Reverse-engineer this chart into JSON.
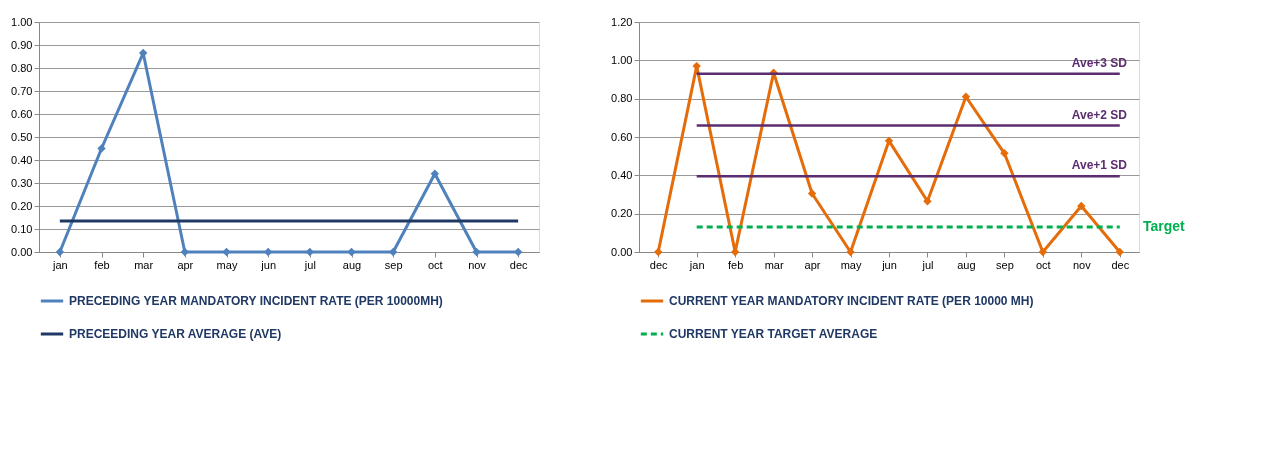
{
  "chart_data": [
    {
      "type": "line",
      "categories": [
        "jan",
        "feb",
        "mar",
        "apr",
        "may",
        "jun",
        "jul",
        "aug",
        "sep",
        "oct",
        "nov",
        "dec"
      ],
      "series": [
        {
          "name": "PRECEDING YEAR MANDATORY INCIDENT RATE (PER 10000MH)",
          "color": "#4f81bd",
          "marker": "diamond",
          "values": [
            0,
            0.45,
            0.865,
            0,
            0,
            0,
            0,
            0,
            0,
            0.34,
            0,
            0
          ]
        },
        {
          "name": "PRECEEDING YEAR AVERAGE (AVE)",
          "color": "#1f3864",
          "marker": "none",
          "values": [
            0.135,
            0.135,
            0.135,
            0.135,
            0.135,
            0.135,
            0.135,
            0.135,
            0.135,
            0.135,
            0.135,
            0.135
          ]
        }
      ],
      "ylim": [
        0,
        1
      ],
      "yticks": [
        {
          "value": 0,
          "label": "0.00"
        },
        {
          "value": 0.1,
          "label": "0.10"
        },
        {
          "value": 0.2,
          "label": "0.20"
        },
        {
          "value": 0.3,
          "label": "0.30"
        },
        {
          "value": 0.4,
          "label": "0.40"
        },
        {
          "value": 0.5,
          "label": "0.50"
        },
        {
          "value": 0.6,
          "label": "0.60"
        },
        {
          "value": 0.7,
          "label": "0.70"
        },
        {
          "value": 0.8,
          "label": "0.80"
        },
        {
          "value": 0.9,
          "label": "0.90"
        },
        {
          "value": 1,
          "label": "1.00"
        }
      ],
      "grid": "y",
      "legend": "bottom"
    },
    {
      "type": "line",
      "categories": [
        "dec",
        "jan",
        "feb",
        "mar",
        "apr",
        "may",
        "jun",
        "jul",
        "aug",
        "sep",
        "oct",
        "nov",
        "dec"
      ],
      "series": [
        {
          "name": "CURRENT YEAR MANDATORY INCIDENT RATE (PER 10000 MH)",
          "color": "#e46c0a",
          "marker": "diamond",
          "values": [
            0,
            0.97,
            0,
            0.935,
            0.305,
            0,
            0.58,
            0.265,
            0.81,
            0.515,
            0,
            0.24,
            0
          ]
        },
        {
          "name": "CURRENT YEAR TARGET AVERAGE",
          "color": "#00b050",
          "marker": "none",
          "line_style": "dashed",
          "values": [
            null,
            0.13,
            0.13,
            0.13,
            0.13,
            0.13,
            0.13,
            0.13,
            0.13,
            0.13,
            0.13,
            0.13,
            0.13
          ]
        }
      ],
      "ref_lines": [
        {
          "axis": "y",
          "value": 0.93,
          "label": "Ave+3 SD",
          "color": "#5b2c6f"
        },
        {
          "axis": "y",
          "value": 0.66,
          "label": "Ave+2 SD",
          "color": "#5b2c6f"
        },
        {
          "axis": "y",
          "value": 0.395,
          "label": "Ave+1 SD",
          "color": "#5b2c6f"
        }
      ],
      "annotations": [
        "Target"
      ],
      "ylim": [
        0,
        1.2
      ],
      "yticks": [
        {
          "value": 0,
          "label": "0.00"
        },
        {
          "value": 0.2,
          "label": "0.20"
        },
        {
          "value": 0.4,
          "label": "0.40"
        },
        {
          "value": 0.6,
          "label": "0.60"
        },
        {
          "value": 0.8,
          "label": "0.80"
        },
        {
          "value": 1,
          "label": "1.00"
        },
        {
          "value": 1.2,
          "label": "1.20"
        }
      ],
      "grid": "y",
      "legend": "bottom"
    }
  ]
}
